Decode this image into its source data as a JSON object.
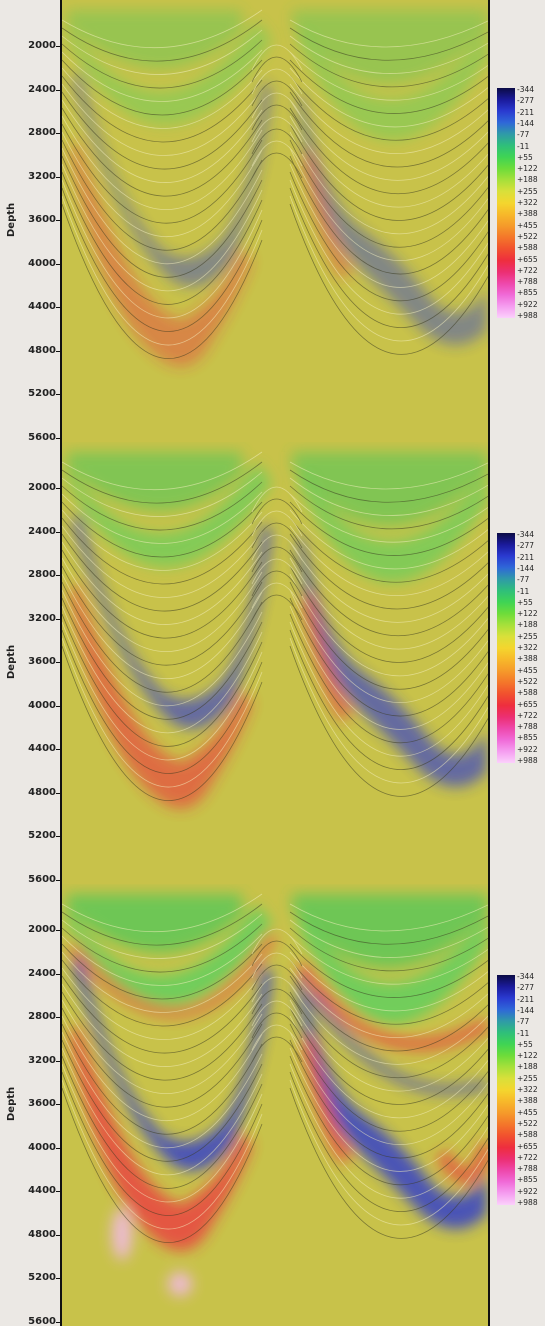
{
  "panels": [
    {
      "id": "panel-1",
      "ylabel": "Depth",
      "ticks": [
        "2000",
        "2400",
        "2800",
        "3200",
        "3600",
        "4000",
        "4400",
        "4800",
        "5200",
        "5600"
      ]
    },
    {
      "id": "panel-2",
      "ylabel": "Depth",
      "ticks": [
        "2000",
        "2400",
        "2800",
        "3200",
        "3600",
        "4000",
        "4400",
        "4800",
        "5200",
        "5600"
      ]
    },
    {
      "id": "panel-3",
      "ylabel": "Depth",
      "ticks": [
        "2000",
        "2400",
        "2800",
        "3200",
        "3600",
        "4000",
        "4400",
        "4800",
        "5200",
        "5600"
      ]
    }
  ],
  "colorbar": {
    "labels": [
      "-344",
      "-277",
      "-211",
      "-144",
      "-77",
      "-11",
      "+55",
      "+122",
      "+188",
      "+255",
      "+322",
      "+388",
      "+455",
      "+522",
      "+588",
      "+655",
      "+722",
      "+788",
      "+855",
      "+922",
      "+988"
    ],
    "colors": [
      "#0b0b45",
      "#1a1a9a",
      "#2a3ad0",
      "#2f67d8",
      "#2f9aa8",
      "#2fbf7a",
      "#3fd454",
      "#6ddc3a",
      "#a6e03a",
      "#d9e03a",
      "#f4d62e",
      "#f7b82a",
      "#f59a2a",
      "#f4762a",
      "#f1502e",
      "#ee2e3e",
      "#ec2f72",
      "#ee48ab",
      "#f06bd8",
      "#f59ef0",
      "#fbd0fb"
    ]
  }
}
